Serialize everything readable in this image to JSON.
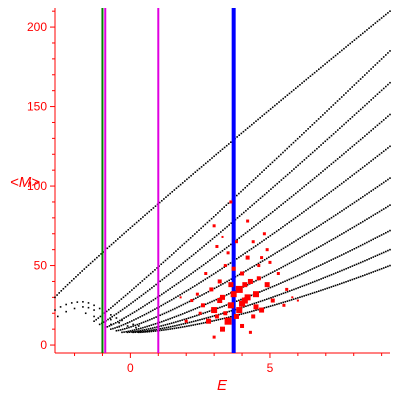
{
  "chart_data": {
    "type": "scatter",
    "xlabel": "E",
    "ylabel": "<M>",
    "xlim": [
      -2.7,
      9.3
    ],
    "ylim": [
      -5,
      212
    ],
    "x_ticks": [
      0,
      5
    ],
    "y_ticks": [
      0,
      50,
      100,
      150,
      200
    ],
    "x_tick_labels": [
      "0",
      "5"
    ],
    "y_tick_labels": [
      "0",
      "50",
      "100",
      "150",
      "200"
    ],
    "grid": false,
    "colors": {
      "axis": "#ff0000",
      "dots": "#000000",
      "highlight": "#ff0000",
      "green_line": "#008000",
      "magenta_line": "#e000e0",
      "blue_line": "#0000ff"
    },
    "vertical_lines": [
      {
        "x": -1.0,
        "color": "#008000"
      },
      {
        "x": -0.9,
        "color": "#e000e0"
      },
      {
        "x": 1.0,
        "color": "#e000e0"
      },
      {
        "x": 3.7,
        "color": "#0000ff"
      }
    ],
    "bands": [
      {
        "x_start": -2.7,
        "x_end": 9.3,
        "y_start": 30,
        "y_end": 210,
        "curve": 0.95
      },
      {
        "x_start": -1.3,
        "x_end": 9.3,
        "y_start": 15,
        "y_end": 185,
        "curve": 1.05
      },
      {
        "x_start": -1.1,
        "x_end": 9.3,
        "y_start": 13,
        "y_end": 165,
        "curve": 1.1
      },
      {
        "x_start": -0.9,
        "x_end": 9.3,
        "y_start": 11,
        "y_end": 145,
        "curve": 1.15
      },
      {
        "x_start": -0.7,
        "x_end": 9.3,
        "y_start": 10,
        "y_end": 125,
        "curve": 1.2
      },
      {
        "x_start": -0.5,
        "x_end": 9.3,
        "y_start": 9,
        "y_end": 105,
        "curve": 1.25
      },
      {
        "x_start": -0.3,
        "x_end": 9.3,
        "y_start": 8,
        "y_end": 88,
        "curve": 1.3
      },
      {
        "x_start": -0.1,
        "x_end": 9.3,
        "y_start": 8,
        "y_end": 72,
        "curve": 1.35
      },
      {
        "x_start": 0.1,
        "x_end": 9.3,
        "y_start": 8,
        "y_end": 60,
        "curve": 1.4
      },
      {
        "x_start": 0.3,
        "x_end": 9.3,
        "y_start": 8,
        "y_end": 50,
        "curve": 1.45
      }
    ],
    "left_curve": [
      [
        -2.7,
        22
      ],
      [
        -2.5,
        24
      ],
      [
        -2.3,
        25.5
      ],
      [
        -2.1,
        26.5
      ],
      [
        -1.9,
        27
      ],
      [
        -1.7,
        27.2
      ],
      [
        -1.5,
        26.5
      ],
      [
        -1.3,
        25
      ],
      [
        -1.1,
        23
      ],
      [
        -0.9,
        21
      ],
      [
        -0.7,
        19
      ],
      [
        -0.5,
        17
      ],
      [
        -0.3,
        15.5
      ],
      [
        -0.1,
        14
      ],
      [
        0.1,
        13
      ],
      [
        0.3,
        12
      ],
      [
        -2.6,
        18
      ],
      [
        -2.3,
        21
      ],
      [
        -2.0,
        23
      ],
      [
        -1.7,
        24
      ],
      [
        -1.5,
        23.5
      ],
      [
        -1.3,
        22
      ],
      [
        -1.0,
        19
      ],
      [
        -0.7,
        16
      ],
      [
        -0.4,
        14
      ],
      [
        -0.1,
        12
      ],
      [
        0.2,
        11
      ],
      [
        -1.6,
        20
      ],
      [
        -1.3,
        18
      ],
      [
        -1.0,
        15
      ],
      [
        -0.7,
        13
      ],
      [
        -0.4,
        11.5
      ]
    ],
    "highlight_points": [
      [
        3.0,
        22,
        6
      ],
      [
        3.3,
        30,
        5
      ],
      [
        3.5,
        15,
        7
      ],
      [
        3.2,
        40,
        4
      ],
      [
        3.6,
        25,
        6
      ],
      [
        3.9,
        35,
        7
      ],
      [
        4.1,
        28,
        6
      ],
      [
        4.3,
        40,
        5
      ],
      [
        4.0,
        45,
        4
      ],
      [
        3.8,
        18,
        5
      ],
      [
        4.5,
        32,
        6
      ],
      [
        4.7,
        22,
        5
      ],
      [
        4.2,
        55,
        4
      ],
      [
        3.4,
        50,
        3
      ],
      [
        2.9,
        35,
        4
      ],
      [
        2.6,
        25,
        4
      ],
      [
        2.8,
        15,
        5
      ],
      [
        3.1,
        62,
        3
      ],
      [
        4.9,
        38,
        5
      ],
      [
        5.1,
        28,
        4
      ],
      [
        4.4,
        65,
        3
      ],
      [
        4.6,
        50,
        3
      ],
      [
        3.7,
        48,
        4
      ],
      [
        2.5,
        20,
        3
      ],
      [
        5.3,
        45,
        3
      ],
      [
        4.8,
        70,
        3
      ],
      [
        3.0,
        75,
        3
      ],
      [
        4.2,
        78,
        3
      ],
      [
        3.6,
        90,
        3
      ],
      [
        5.5,
        25,
        3
      ],
      [
        2.4,
        32,
        3
      ],
      [
        3.3,
        10,
        5
      ],
      [
        4.0,
        12,
        4
      ],
      [
        4.4,
        18,
        4
      ],
      [
        3.5,
        58,
        3
      ],
      [
        5.0,
        52,
        3
      ],
      [
        2.7,
        45,
        3
      ],
      [
        4.6,
        42,
        4
      ],
      [
        3.9,
        22,
        6
      ],
      [
        4.1,
        38,
        5
      ],
      [
        3.2,
        28,
        5
      ],
      [
        3.7,
        32,
        6
      ],
      [
        2.2,
        28,
        3
      ],
      [
        5.6,
        35,
        3
      ],
      [
        3.0,
        5,
        3
      ],
      [
        4.3,
        8,
        3
      ],
      [
        3.8,
        65,
        3
      ],
      [
        4.9,
        60,
        3
      ],
      [
        2.0,
        15,
        3
      ],
      [
        3.4,
        20,
        4
      ],
      [
        4.2,
        30,
        6
      ],
      [
        3.6,
        38,
        5
      ],
      [
        3.1,
        18,
        4
      ],
      [
        4.0,
        26,
        6
      ],
      [
        4.5,
        24,
        5
      ],
      [
        1.8,
        30,
        2
      ],
      [
        5.8,
        30,
        2
      ],
      [
        6.0,
        28,
        2
      ],
      [
        4.7,
        55,
        3
      ],
      [
        3.3,
        68,
        2
      ]
    ]
  }
}
